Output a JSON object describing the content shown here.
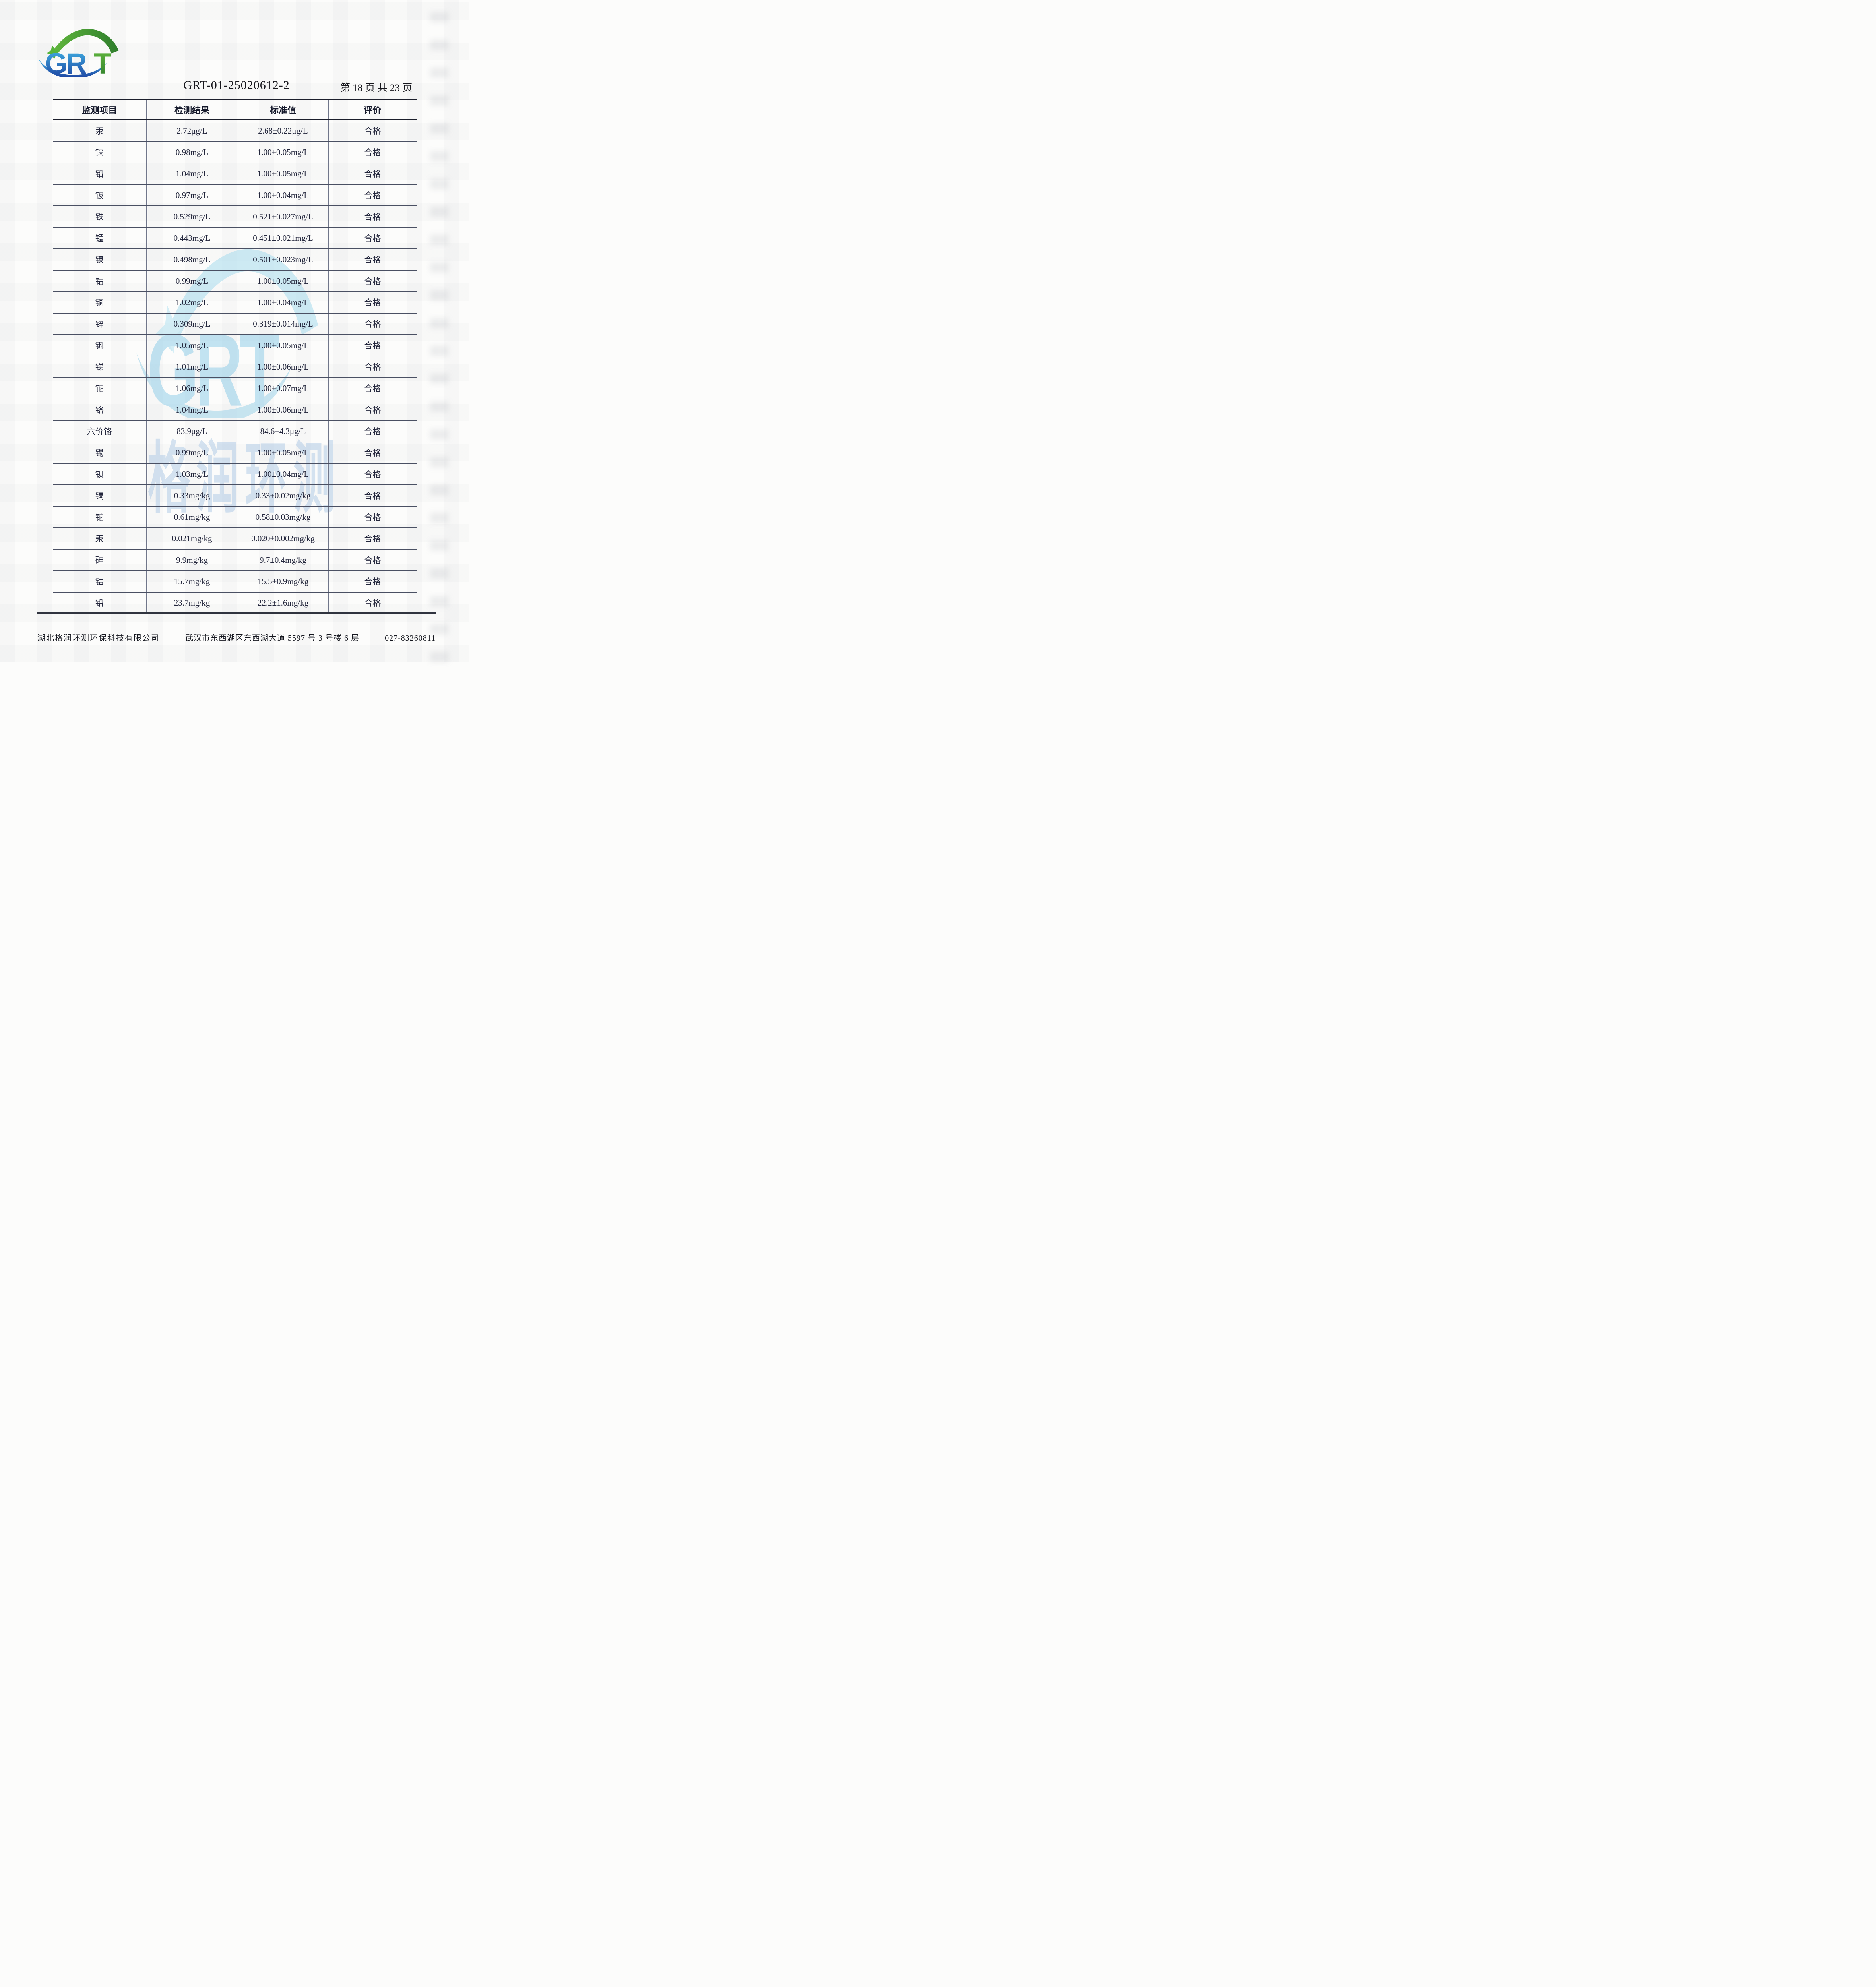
{
  "header": {
    "logo": {
      "gr": "GR",
      "t": "T"
    },
    "doc_number": "GRT-01-25020612-2",
    "page_info": "第 18 页 共 23 页"
  },
  "watermark": {
    "letters": "GRT",
    "name": "格润环测"
  },
  "table": {
    "columns": [
      "监测项目",
      "检测结果",
      "标准值",
      "评价"
    ],
    "rows": [
      {
        "item": "汞",
        "result": "2.72μg/L",
        "standard": "2.68±0.22μg/L",
        "evaluation": "合格"
      },
      {
        "item": "镉",
        "result": "0.98mg/L",
        "standard": "1.00±0.05mg/L",
        "evaluation": "合格"
      },
      {
        "item": "铅",
        "result": "1.04mg/L",
        "standard": "1.00±0.05mg/L",
        "evaluation": "合格"
      },
      {
        "item": "铍",
        "result": "0.97mg/L",
        "standard": "1.00±0.04mg/L",
        "evaluation": "合格"
      },
      {
        "item": "铁",
        "result": "0.529mg/L",
        "standard": "0.521±0.027mg/L",
        "evaluation": "合格"
      },
      {
        "item": "锰",
        "result": "0.443mg/L",
        "standard": "0.451±0.021mg/L",
        "evaluation": "合格"
      },
      {
        "item": "镍",
        "result": "0.498mg/L",
        "standard": "0.501±0.023mg/L",
        "evaluation": "合格"
      },
      {
        "item": "钴",
        "result": "0.99mg/L",
        "standard": "1.00±0.05mg/L",
        "evaluation": "合格"
      },
      {
        "item": "铜",
        "result": "1.02mg/L",
        "standard": "1.00±0.04mg/L",
        "evaluation": "合格"
      },
      {
        "item": "锌",
        "result": "0.309mg/L",
        "standard": "0.319±0.014mg/L",
        "evaluation": "合格"
      },
      {
        "item": "钒",
        "result": "1.05mg/L",
        "standard": "1.00±0.05mg/L",
        "evaluation": "合格"
      },
      {
        "item": "锑",
        "result": "1.01mg/L",
        "standard": "1.00±0.06mg/L",
        "evaluation": "合格"
      },
      {
        "item": "铊",
        "result": "1.06mg/L",
        "standard": "1.00±0.07mg/L",
        "evaluation": "合格"
      },
      {
        "item": "铬",
        "result": "1.04mg/L",
        "standard": "1.00±0.06mg/L",
        "evaluation": "合格"
      },
      {
        "item": "六价铬",
        "result": "83.9μg/L",
        "standard": "84.6±4.3μg/L",
        "evaluation": "合格"
      },
      {
        "item": "锡",
        "result": "0.99mg/L",
        "standard": "1.00±0.05mg/L",
        "evaluation": "合格"
      },
      {
        "item": "钡",
        "result": "1.03mg/L",
        "standard": "1.00±0.04mg/L",
        "evaluation": "合格"
      },
      {
        "item": "镉",
        "result": "0.33mg/kg",
        "standard": "0.33±0.02mg/kg",
        "evaluation": "合格"
      },
      {
        "item": "铊",
        "result": "0.61mg/kg",
        "standard": "0.58±0.03mg/kg",
        "evaluation": "合格"
      },
      {
        "item": "汞",
        "result": "0.021mg/kg",
        "standard": "0.020±0.002mg/kg",
        "evaluation": "合格"
      },
      {
        "item": "砷",
        "result": "9.9mg/kg",
        "standard": "9.7±0.4mg/kg",
        "evaluation": "合格"
      },
      {
        "item": "钴",
        "result": "15.7mg/kg",
        "standard": "15.5±0.9mg/kg",
        "evaluation": "合格"
      },
      {
        "item": "铅",
        "result": "23.7mg/kg",
        "standard": "22.2±1.6mg/kg",
        "evaluation": "合格"
      }
    ]
  },
  "footer": {
    "company": "湖北格润环测环保科技有限公司",
    "address": "武汉市东西湖区东西湖大道 5597 号 3 号楼 6 层",
    "phone": "027-83260811"
  },
  "colors": {
    "logo_blue_top": "#41b6e6",
    "logo_blue_bottom": "#1c3e9e",
    "logo_green_top": "#63b93e",
    "logo_green_bottom": "#2e7d2c",
    "logo_star_green": "#56b43a",
    "watermark_cyan": "#93cfe9",
    "watermark_cyan_light": "#a8dcee",
    "watermark_blue": "#adc9e6",
    "ink": "#23263c",
    "line_heavy": "#1c1f2c",
    "line_light": "#4a5063"
  }
}
